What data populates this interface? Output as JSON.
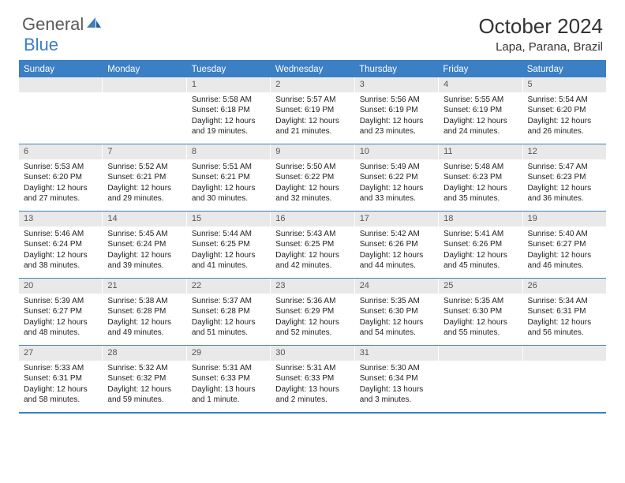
{
  "logo": {
    "general": "General",
    "blue": "Blue"
  },
  "title": "October 2024",
  "location": "Lapa, Parana, Brazil",
  "weekdays": [
    "Sunday",
    "Monday",
    "Tuesday",
    "Wednesday",
    "Thursday",
    "Friday",
    "Saturday"
  ],
  "colors": {
    "accent": "#3b7fc4",
    "daynum_bg": "#e9e9e9",
    "text": "#222222"
  },
  "weeks": [
    [
      {
        "n": "",
        "empty": true
      },
      {
        "n": "",
        "empty": true
      },
      {
        "n": "1",
        "sr": "5:58 AM",
        "ss": "6:18 PM",
        "dl": "12 hours and 19 minutes."
      },
      {
        "n": "2",
        "sr": "5:57 AM",
        "ss": "6:19 PM",
        "dl": "12 hours and 21 minutes."
      },
      {
        "n": "3",
        "sr": "5:56 AM",
        "ss": "6:19 PM",
        "dl": "12 hours and 23 minutes."
      },
      {
        "n": "4",
        "sr": "5:55 AM",
        "ss": "6:19 PM",
        "dl": "12 hours and 24 minutes."
      },
      {
        "n": "5",
        "sr": "5:54 AM",
        "ss": "6:20 PM",
        "dl": "12 hours and 26 minutes."
      }
    ],
    [
      {
        "n": "6",
        "sr": "5:53 AM",
        "ss": "6:20 PM",
        "dl": "12 hours and 27 minutes."
      },
      {
        "n": "7",
        "sr": "5:52 AM",
        "ss": "6:21 PM",
        "dl": "12 hours and 29 minutes."
      },
      {
        "n": "8",
        "sr": "5:51 AM",
        "ss": "6:21 PM",
        "dl": "12 hours and 30 minutes."
      },
      {
        "n": "9",
        "sr": "5:50 AM",
        "ss": "6:22 PM",
        "dl": "12 hours and 32 minutes."
      },
      {
        "n": "10",
        "sr": "5:49 AM",
        "ss": "6:22 PM",
        "dl": "12 hours and 33 minutes."
      },
      {
        "n": "11",
        "sr": "5:48 AM",
        "ss": "6:23 PM",
        "dl": "12 hours and 35 minutes."
      },
      {
        "n": "12",
        "sr": "5:47 AM",
        "ss": "6:23 PM",
        "dl": "12 hours and 36 minutes."
      }
    ],
    [
      {
        "n": "13",
        "sr": "5:46 AM",
        "ss": "6:24 PM",
        "dl": "12 hours and 38 minutes."
      },
      {
        "n": "14",
        "sr": "5:45 AM",
        "ss": "6:24 PM",
        "dl": "12 hours and 39 minutes."
      },
      {
        "n": "15",
        "sr": "5:44 AM",
        "ss": "6:25 PM",
        "dl": "12 hours and 41 minutes."
      },
      {
        "n": "16",
        "sr": "5:43 AM",
        "ss": "6:25 PM",
        "dl": "12 hours and 42 minutes."
      },
      {
        "n": "17",
        "sr": "5:42 AM",
        "ss": "6:26 PM",
        "dl": "12 hours and 44 minutes."
      },
      {
        "n": "18",
        "sr": "5:41 AM",
        "ss": "6:26 PM",
        "dl": "12 hours and 45 minutes."
      },
      {
        "n": "19",
        "sr": "5:40 AM",
        "ss": "6:27 PM",
        "dl": "12 hours and 46 minutes."
      }
    ],
    [
      {
        "n": "20",
        "sr": "5:39 AM",
        "ss": "6:27 PM",
        "dl": "12 hours and 48 minutes."
      },
      {
        "n": "21",
        "sr": "5:38 AM",
        "ss": "6:28 PM",
        "dl": "12 hours and 49 minutes."
      },
      {
        "n": "22",
        "sr": "5:37 AM",
        "ss": "6:28 PM",
        "dl": "12 hours and 51 minutes."
      },
      {
        "n": "23",
        "sr": "5:36 AM",
        "ss": "6:29 PM",
        "dl": "12 hours and 52 minutes."
      },
      {
        "n": "24",
        "sr": "5:35 AM",
        "ss": "6:30 PM",
        "dl": "12 hours and 54 minutes."
      },
      {
        "n": "25",
        "sr": "5:35 AM",
        "ss": "6:30 PM",
        "dl": "12 hours and 55 minutes."
      },
      {
        "n": "26",
        "sr": "5:34 AM",
        "ss": "6:31 PM",
        "dl": "12 hours and 56 minutes."
      }
    ],
    [
      {
        "n": "27",
        "sr": "5:33 AM",
        "ss": "6:31 PM",
        "dl": "12 hours and 58 minutes."
      },
      {
        "n": "28",
        "sr": "5:32 AM",
        "ss": "6:32 PM",
        "dl": "12 hours and 59 minutes."
      },
      {
        "n": "29",
        "sr": "5:31 AM",
        "ss": "6:33 PM",
        "dl": "13 hours and 1 minute."
      },
      {
        "n": "30",
        "sr": "5:31 AM",
        "ss": "6:33 PM",
        "dl": "13 hours and 2 minutes."
      },
      {
        "n": "31",
        "sr": "5:30 AM",
        "ss": "6:34 PM",
        "dl": "13 hours and 3 minutes."
      },
      {
        "n": "",
        "empty": true
      },
      {
        "n": "",
        "empty": true
      }
    ]
  ]
}
